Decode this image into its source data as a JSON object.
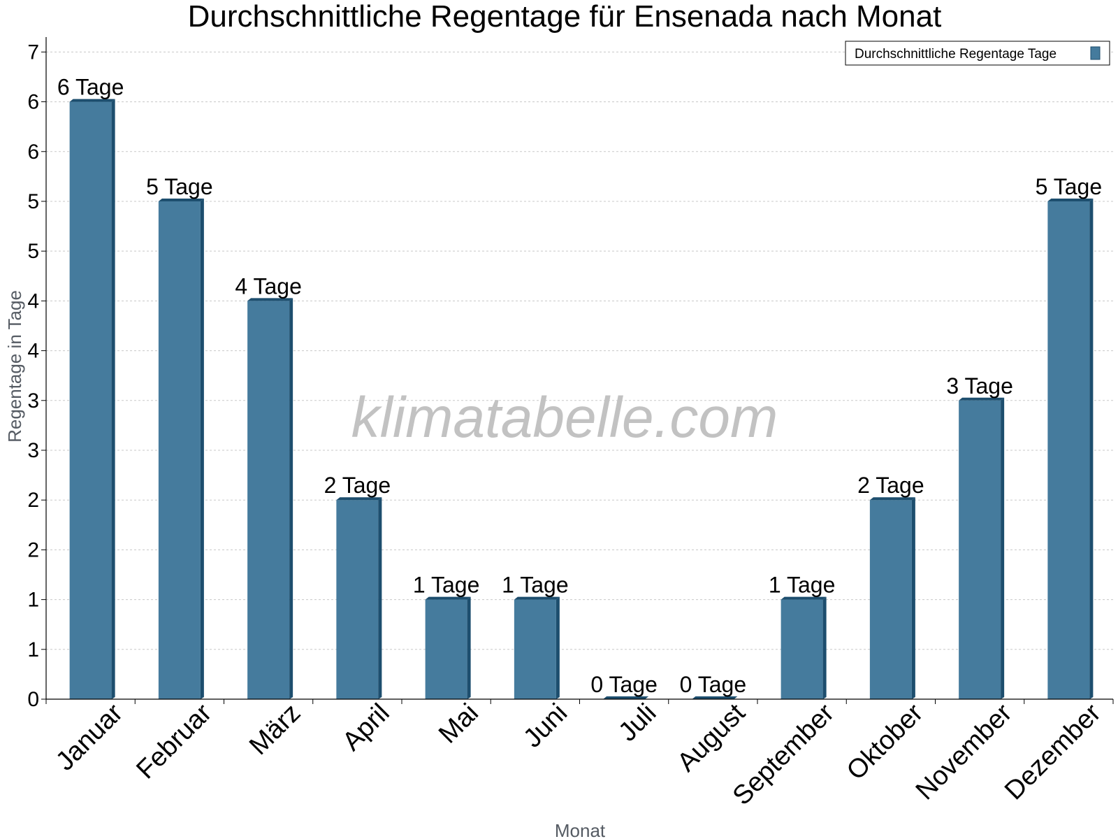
{
  "chart_data": {
    "type": "bar",
    "title": "Durchschnittliche Regentage für Ensenada nach Monat",
    "xlabel": "Monat",
    "ylabel": "Regentage in Tage",
    "categories": [
      "Januar",
      "Februar",
      "März",
      "April",
      "Mai",
      "Juni",
      "Juli",
      "August",
      "September",
      "Oktober",
      "November",
      "Dezember"
    ],
    "series": [
      {
        "name": "Durchschnittliche Regentage Tage",
        "values": [
          6,
          5,
          4,
          2,
          1,
          1,
          0,
          0,
          1,
          2,
          3,
          5
        ],
        "labels": [
          "6 Tage",
          "5 Tage",
          "4 Tage",
          "2 Tage",
          "1 Tage",
          "1 Tage",
          "0 Tage",
          "0 Tage",
          "1 Tage",
          "2 Tage",
          "3 Tage",
          "5 Tage"
        ]
      }
    ],
    "ylim": [
      0,
      6.5
    ],
    "y_tick_labels": [
      "0",
      "1",
      "1",
      "2",
      "2",
      "3",
      "3",
      "4",
      "4",
      "5",
      "5",
      "6",
      "6",
      "7"
    ],
    "y_tick_step": 0.5,
    "grid": true,
    "legend_position": "top-right",
    "watermark": "klimatabelle.com",
    "colors": {
      "bar": "#457b9d",
      "bar_side": "#1d4e6e",
      "grid": "#c8c8c8"
    }
  }
}
